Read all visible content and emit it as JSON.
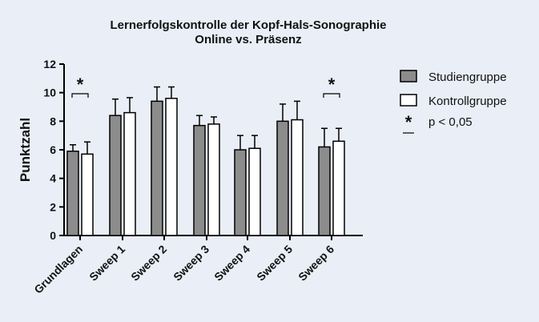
{
  "chart_data": {
    "type": "bar",
    "title": [
      "Lernerfolgskontrolle der Kopf-Hals-Sonographie",
      "Online vs. Präsenz"
    ],
    "xlabel": "",
    "ylabel": "Punktzahl",
    "ylim": [
      0,
      12
    ],
    "yticks": [
      "0",
      "2",
      "4",
      "6",
      "8",
      "10",
      "12"
    ],
    "categories": [
      "Grundlagen",
      "Sweep 1",
      "Sweep 2",
      "Sweep 3",
      "Sweep 4",
      "Sweep 5",
      "Sweep 6"
    ],
    "series": [
      {
        "name": "Studiengruppe",
        "color": "#8c8c8c",
        "values": [
          5.9,
          8.4,
          9.4,
          7.7,
          6.0,
          8.0,
          6.2
        ],
        "error": [
          0.45,
          1.15,
          1.0,
          0.7,
          1.0,
          1.2,
          1.3
        ]
      },
      {
        "name": "Kontrollgruppe",
        "color": "#ffffff",
        "values": [
          5.7,
          8.6,
          9.6,
          7.8,
          6.1,
          8.1,
          6.6
        ],
        "error": [
          0.85,
          1.05,
          0.8,
          0.5,
          0.9,
          1.3,
          0.9
        ]
      }
    ],
    "significance": [
      {
        "category": "Grundlagen",
        "symbol": "*"
      },
      {
        "category": "Sweep 6",
        "symbol": "*"
      }
    ],
    "legend": {
      "placement": "right",
      "significance_symbol": "*",
      "significance_label": "p < 0,05"
    },
    "grid": false
  }
}
